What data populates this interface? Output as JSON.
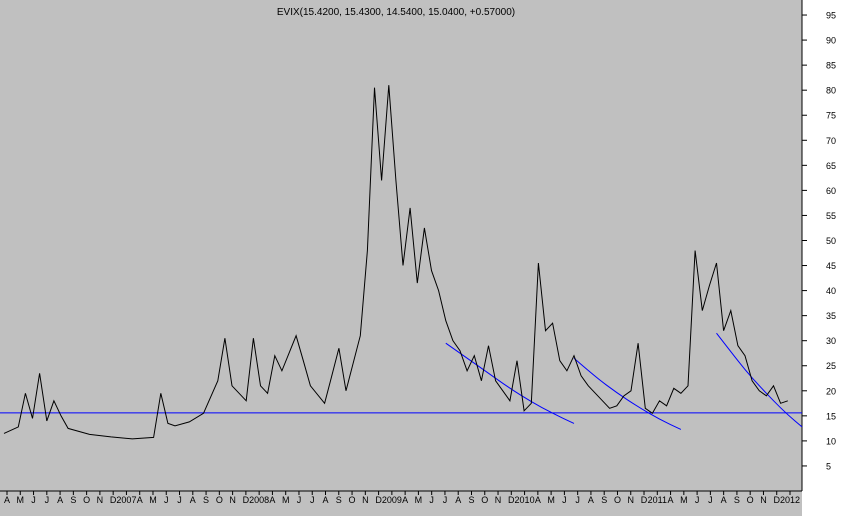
{
  "chart_data": {
    "type": "line",
    "title": "EVIX(15.4200, 15.4300, 14.5400, 15.0400, +0.57000)",
    "xlabel": "",
    "ylabel": "",
    "ylim": [
      0,
      98
    ],
    "yticks": [
      5,
      10,
      15,
      20,
      25,
      30,
      35,
      40,
      45,
      50,
      55,
      60,
      65,
      70,
      75,
      80,
      85,
      90,
      95
    ],
    "x_tick_labels": [
      "A",
      "M",
      "J",
      "J",
      "A",
      "S",
      "O",
      "N",
      "D",
      "2007",
      "A",
      "M",
      "J",
      "J",
      "A",
      "S",
      "O",
      "N",
      "D",
      "2008",
      "A",
      "M",
      "J",
      "J",
      "A",
      "S",
      "O",
      "N",
      "D",
      "2009",
      "A",
      "M",
      "J",
      "J",
      "A",
      "S",
      "O",
      "N",
      "D",
      "2010",
      "A",
      "M",
      "J",
      "J",
      "A",
      "S",
      "O",
      "N",
      "D",
      "2011",
      "A",
      "M",
      "J",
      "J",
      "A",
      "S",
      "O",
      "N",
      "D",
      "2012"
    ],
    "grid": false,
    "colors": {
      "background": "#c0c0c0",
      "series": "#000000",
      "trendlines": "#0000ff"
    },
    "series": [
      {
        "values": [
          {
            "x": 0,
            "y": 11.5
          },
          {
            "x": 2,
            "y": 12.8
          },
          {
            "x": 3,
            "y": 19.5
          },
          {
            "x": 4,
            "y": 14.5
          },
          {
            "x": 5,
            "y": 23.5
          },
          {
            "x": 6,
            "y": 14
          },
          {
            "x": 7,
            "y": 18
          },
          {
            "x": 8,
            "y": 15
          },
          {
            "x": 9,
            "y": 12.5
          },
          {
            "x": 12,
            "y": 11.3
          },
          {
            "x": 15,
            "y": 10.8
          },
          {
            "x": 18,
            "y": 10.4
          },
          {
            "x": 21,
            "y": 10.7
          },
          {
            "x": 22,
            "y": 19.5
          },
          {
            "x": 23,
            "y": 13.5
          },
          {
            "x": 24,
            "y": 13
          },
          {
            "x": 26,
            "y": 13.8
          },
          {
            "x": 28,
            "y": 15.5
          },
          {
            "x": 30,
            "y": 22
          },
          {
            "x": 31,
            "y": 30.5
          },
          {
            "x": 32,
            "y": 21
          },
          {
            "x": 34,
            "y": 18
          },
          {
            "x": 35,
            "y": 30.5
          },
          {
            "x": 36,
            "y": 21
          },
          {
            "x": 37,
            "y": 19.5
          },
          {
            "x": 38,
            "y": 27
          },
          {
            "x": 39,
            "y": 24
          },
          {
            "x": 41,
            "y": 31
          },
          {
            "x": 42,
            "y": 26
          },
          {
            "x": 43,
            "y": 21
          },
          {
            "x": 45,
            "y": 17.5
          },
          {
            "x": 46,
            "y": 23
          },
          {
            "x": 47,
            "y": 28.5
          },
          {
            "x": 48,
            "y": 20
          },
          {
            "x": 50,
            "y": 31
          },
          {
            "x": 51,
            "y": 48
          },
          {
            "x": 52,
            "y": 80.5
          },
          {
            "x": 53,
            "y": 62
          },
          {
            "x": 54,
            "y": 81
          },
          {
            "x": 55,
            "y": 62
          },
          {
            "x": 56,
            "y": 45
          },
          {
            "x": 57,
            "y": 56.5
          },
          {
            "x": 58,
            "y": 41.5
          },
          {
            "x": 59,
            "y": 52.5
          },
          {
            "x": 60,
            "y": 44
          },
          {
            "x": 61,
            "y": 40
          },
          {
            "x": 62,
            "y": 34
          },
          {
            "x": 63,
            "y": 30
          },
          {
            "x": 64,
            "y": 28
          },
          {
            "x": 65,
            "y": 24
          },
          {
            "x": 66,
            "y": 27
          },
          {
            "x": 67,
            "y": 22
          },
          {
            "x": 68,
            "y": 29
          },
          {
            "x": 69,
            "y": 22
          },
          {
            "x": 70,
            "y": 20
          },
          {
            "x": 71,
            "y": 18
          },
          {
            "x": 72,
            "y": 26
          },
          {
            "x": 73,
            "y": 16
          },
          {
            "x": 74,
            "y": 17.5
          },
          {
            "x": 75,
            "y": 45.5
          },
          {
            "x": 76,
            "y": 32
          },
          {
            "x": 77,
            "y": 33.5
          },
          {
            "x": 78,
            "y": 26
          },
          {
            "x": 79,
            "y": 24
          },
          {
            "x": 80,
            "y": 27
          },
          {
            "x": 81,
            "y": 23
          },
          {
            "x": 82,
            "y": 21
          },
          {
            "x": 83,
            "y": 19.5
          },
          {
            "x": 84,
            "y": 18
          },
          {
            "x": 85,
            "y": 16.5
          },
          {
            "x": 86,
            "y": 17
          },
          {
            "x": 87,
            "y": 19
          },
          {
            "x": 88,
            "y": 20
          },
          {
            "x": 89,
            "y": 29.5
          },
          {
            "x": 90,
            "y": 16.5
          },
          {
            "x": 91,
            "y": 15.5
          },
          {
            "x": 92,
            "y": 18
          },
          {
            "x": 93,
            "y": 17
          },
          {
            "x": 94,
            "y": 20.5
          },
          {
            "x": 95,
            "y": 19.5
          },
          {
            "x": 96,
            "y": 21
          },
          {
            "x": 97,
            "y": 48
          },
          {
            "x": 98,
            "y": 36
          },
          {
            "x": 99,
            "y": 41
          },
          {
            "x": 100,
            "y": 45.5
          },
          {
            "x": 101,
            "y": 32
          },
          {
            "x": 102,
            "y": 36
          },
          {
            "x": 103,
            "y": 29
          },
          {
            "x": 104,
            "y": 27
          },
          {
            "x": 105,
            "y": 22
          },
          {
            "x": 106,
            "y": 20
          },
          {
            "x": 107,
            "y": 19
          },
          {
            "x": 108,
            "y": 21
          },
          {
            "x": 109,
            "y": 17.5
          },
          {
            "x": 110,
            "y": 18
          }
        ]
      }
    ],
    "horizontal_lines": [
      {
        "y": 15.6
      }
    ],
    "trendlines": [
      {
        "points": [
          [
            62,
            29.5
          ],
          [
            65,
            26.5
          ],
          [
            68,
            23.5
          ],
          [
            71,
            20.5
          ],
          [
            74,
            17.8
          ],
          [
            77,
            15.5
          ],
          [
            80,
            13.5
          ]
        ]
      },
      {
        "points": [
          [
            80,
            26.5
          ],
          [
            83,
            22.8
          ],
          [
            86,
            19.6
          ],
          [
            89,
            16.8
          ],
          [
            92,
            14.3
          ],
          [
            95,
            12.3
          ]
        ]
      },
      {
        "points": [
          [
            100,
            31.5
          ],
          [
            102,
            27.8
          ],
          [
            104,
            24.2
          ],
          [
            106,
            21
          ],
          [
            108,
            18
          ],
          [
            110,
            15.2
          ],
          [
            112,
            12.8
          ]
        ]
      }
    ]
  }
}
